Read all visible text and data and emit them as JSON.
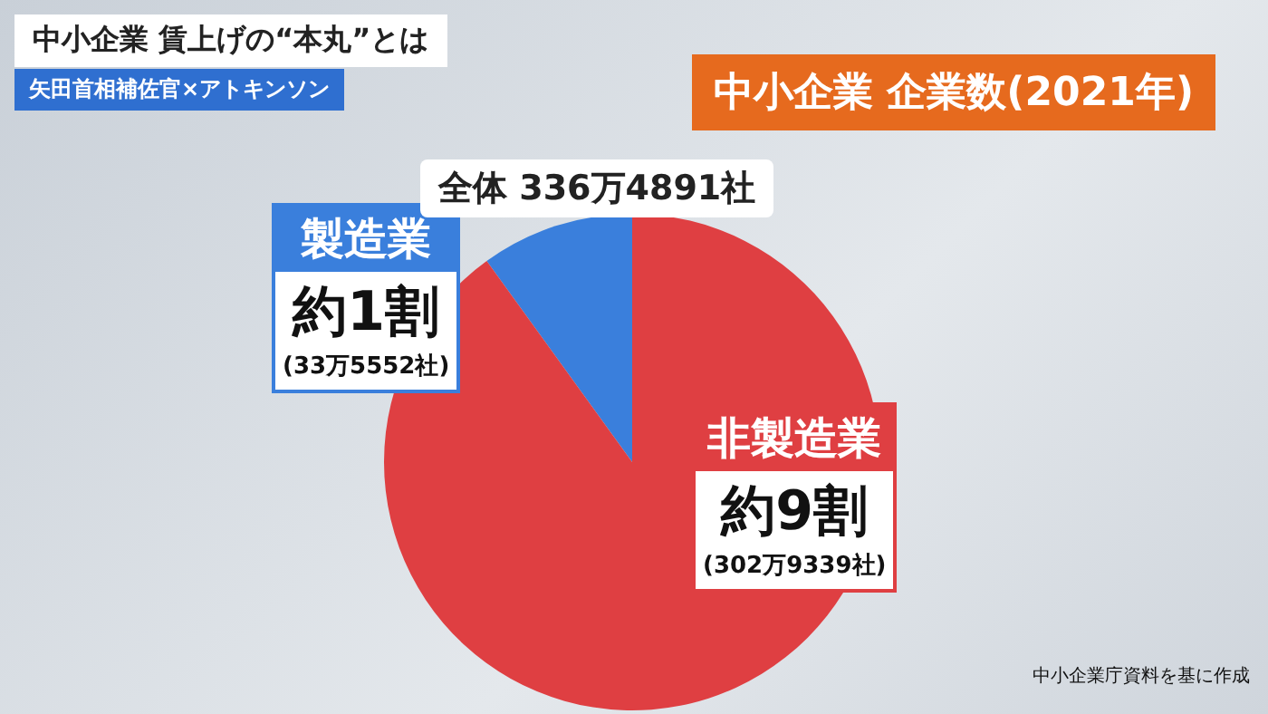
{
  "chart_data": {
    "type": "pie",
    "title": "中小企業 企業数(2021年)",
    "subtitle": "中小企業 賃上げの“本丸”とは",
    "categories": [
      "製造業",
      "非製造業"
    ],
    "values": [
      9.97,
      90.03
    ],
    "colors": [
      "#3a7fdc",
      "#df3f42"
    ],
    "value_labels": [
      "約1割",
      "約9割"
    ],
    "annotations": [
      "(33万5552社)",
      "(302万9339社)",
      "全体 336万4891社",
      "矢田首相補佐官×アトキンソン",
      "中小企業庁資料を基に作成"
    ]
  }
}
